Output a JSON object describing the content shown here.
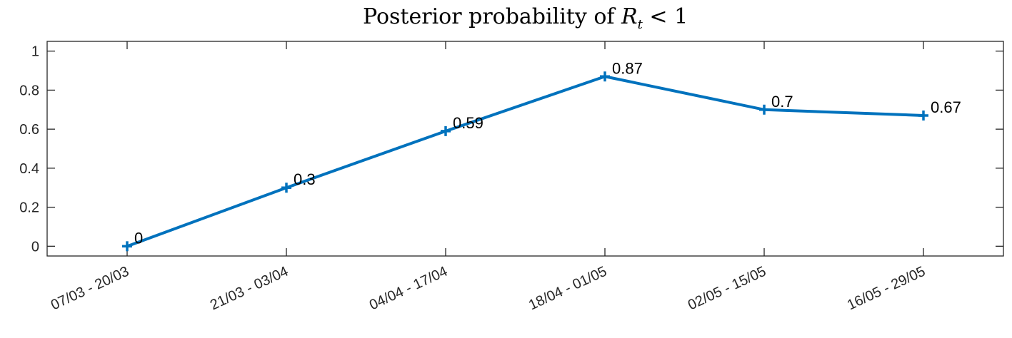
{
  "chart_data": {
    "type": "line",
    "title_text": "Posterior probability of ",
    "title_math": "R",
    "title_math_sub": "t",
    "title_suffix": " < 1",
    "xlabel": "",
    "ylabel": "",
    "categories": [
      "07/03 - 20/03",
      "21/03 - 03/04",
      "04/04 - 17/04",
      "18/04 - 01/05",
      "02/05 - 15/05",
      "16/05 - 29/05"
    ],
    "series": [
      {
        "values": [
          0,
          0.3,
          0.59,
          0.87,
          0.7,
          0.67
        ],
        "labels": [
          "0",
          "0.3",
          "0.59",
          "0.87",
          "0.7",
          "0.67"
        ]
      }
    ],
    "ylim": [
      -0.05,
      1.05
    ],
    "yticks": [
      0,
      0.2,
      0.4,
      0.6,
      0.8,
      1
    ],
    "ytick_labels": [
      "0",
      "0.2",
      "0.4",
      "0.6",
      "0.8",
      "1"
    ],
    "grid": false,
    "marker": "+",
    "colors": {
      "line": "#0072BD",
      "axis": "#262626"
    }
  }
}
